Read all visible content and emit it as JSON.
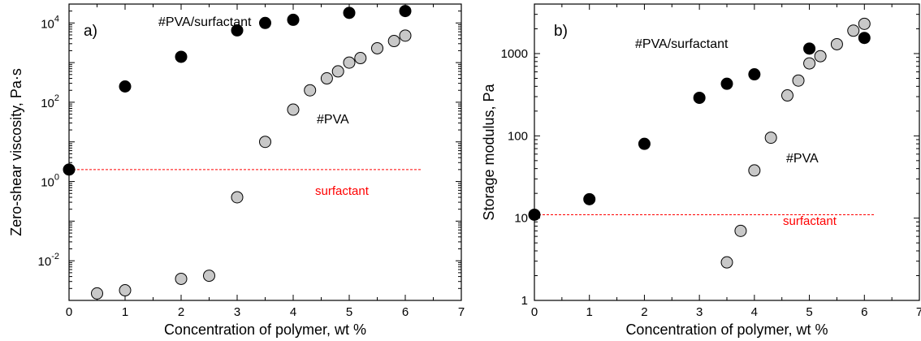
{
  "colors": {
    "filled": "#000000",
    "open": "#c8c8c8",
    "surfactant_line": "#ff0000"
  },
  "chart_data": [
    {
      "type": "scatter",
      "panel_label": "a)",
      "xlabel": "Concentration of polymer, wt %",
      "ylabel": "Zero-shear viscosity, Pa·s",
      "xlim": [
        0,
        7
      ],
      "ylim": [
        0.001,
        30000
      ],
      "yscale": "log",
      "x_ticks": [
        "0",
        "1",
        "2",
        "3",
        "4",
        "5",
        "6",
        "7"
      ],
      "y_ticks": [
        {
          "base": "10",
          "exp": "-2",
          "value": 0.01
        },
        {
          "base": "10",
          "exp": "0",
          "value": 1
        },
        {
          "base": "10",
          "exp": "2",
          "value": 100
        },
        {
          "base": "10",
          "exp": "4",
          "value": 10000
        }
      ],
      "series": [
        {
          "name": "#PVA/surfactant",
          "marker": "filled",
          "points": [
            [
              0,
              2
            ],
            [
              1,
              250
            ],
            [
              2,
              1400
            ],
            [
              3,
              6500
            ],
            [
              3.5,
              10000
            ],
            [
              4,
              12000
            ],
            [
              5,
              18000
            ],
            [
              6,
              20000
            ]
          ]
        },
        {
          "name": "#PVA",
          "marker": "open",
          "points": [
            [
              0.5,
              0.0015
            ],
            [
              1,
              0.0018
            ],
            [
              2,
              0.0035
            ],
            [
              2.5,
              0.0042
            ],
            [
              3,
              0.4
            ],
            [
              3.5,
              10
            ],
            [
              4,
              65
            ],
            [
              4.3,
              200
            ],
            [
              4.6,
              400
            ],
            [
              4.8,
              600
            ],
            [
              5,
              1000
            ],
            [
              5.2,
              1300
            ],
            [
              5.5,
              2300
            ],
            [
              5.8,
              3500
            ],
            [
              6,
              4800
            ]
          ]
        }
      ],
      "reference_line": {
        "label": "surfactant",
        "y": 2,
        "x_range": [
          0,
          6.3
        ]
      }
    },
    {
      "type": "scatter",
      "panel_label": "b)",
      "xlabel": "Concentration of polymer, wt %",
      "ylabel": "Storage modulus, Pa",
      "xlim": [
        0,
        7
      ],
      "ylim": [
        1,
        4000
      ],
      "yscale": "log",
      "x_ticks": [
        "0",
        "1",
        "2",
        "3",
        "4",
        "5",
        "6",
        "7"
      ],
      "y_ticks": [
        {
          "label": "1",
          "value": 1
        },
        {
          "label": "10",
          "value": 10
        },
        {
          "label": "100",
          "value": 100
        },
        {
          "label": "1000",
          "value": 1000
        }
      ],
      "series": [
        {
          "name": "#PVA/surfactant",
          "marker": "filled",
          "points": [
            [
              0,
              11
            ],
            [
              1,
              17
            ],
            [
              2,
              80
            ],
            [
              3,
              290
            ],
            [
              3.5,
              430
            ],
            [
              4,
              560
            ],
            [
              5,
              1150
            ],
            [
              6,
              1550
            ]
          ]
        },
        {
          "name": "#PVA",
          "marker": "open",
          "points": [
            [
              3.5,
              2.9
            ],
            [
              3.75,
              7
            ],
            [
              4,
              38
            ],
            [
              4.3,
              95
            ],
            [
              4.6,
              310
            ],
            [
              4.8,
              470
            ],
            [
              5,
              760
            ],
            [
              5.2,
              930
            ],
            [
              5.5,
              1300
            ],
            [
              5.8,
              1900
            ],
            [
              6,
              2300
            ]
          ]
        }
      ],
      "reference_line": {
        "label": "surfactant",
        "y": 11,
        "x_range": [
          0,
          6.2
        ]
      }
    }
  ]
}
